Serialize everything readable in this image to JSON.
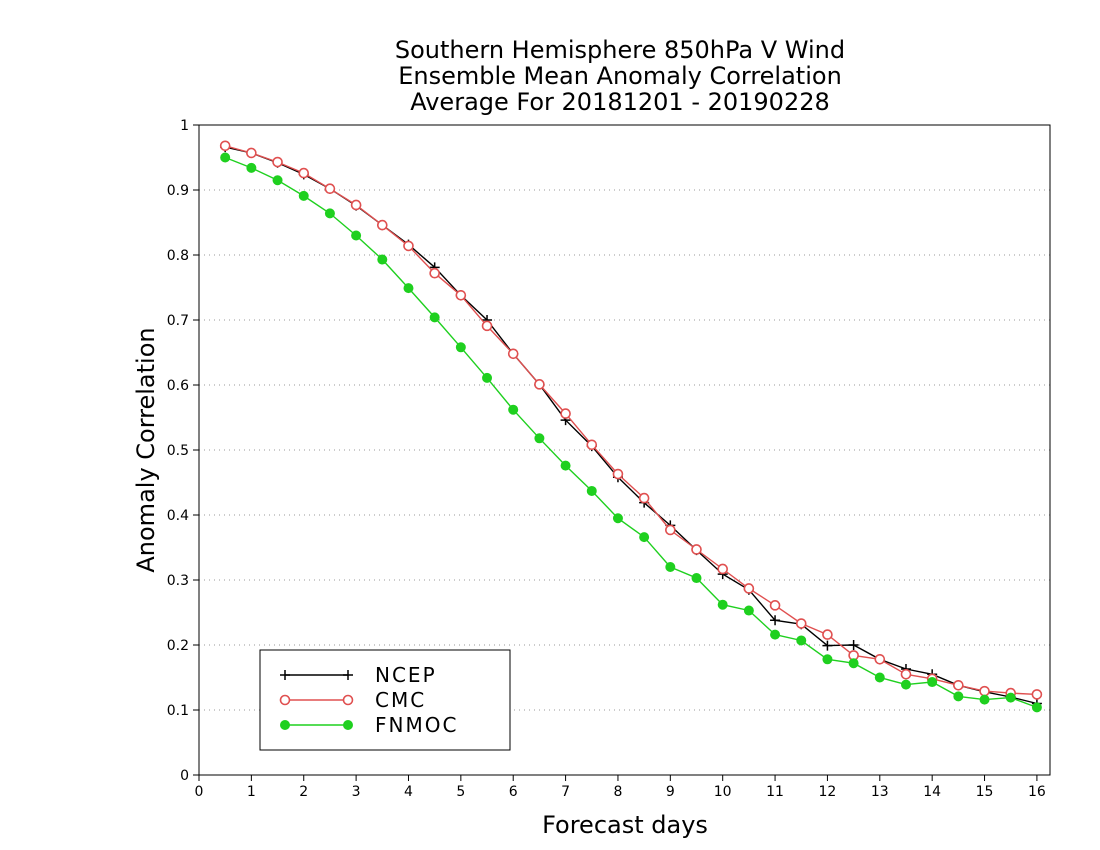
{
  "chart_data": {
    "type": "line",
    "title": [
      "Southern Hemisphere 850hPa V Wind",
      "Ensemble Mean Anomaly Correlation",
      "Average For 20181201 - 20190228"
    ],
    "xlabel": "Forecast days",
    "ylabel": "Anomaly Correlation",
    "xlim": [
      0,
      16.25
    ],
    "ylim": [
      0,
      1
    ],
    "xticks": [
      "0",
      "1",
      "2",
      "3",
      "4",
      "5",
      "6",
      "7",
      "8",
      "9",
      "10",
      "11",
      "12",
      "13",
      "14",
      "15",
      "16"
    ],
    "yticks": [
      "0",
      "0.1",
      "0.2",
      "0.3",
      "0.4",
      "0.5",
      "0.6",
      "0.7",
      "0.8",
      "0.9",
      "1"
    ],
    "grid": "horizontal dotted",
    "legend_position": "bottom-left",
    "x": [
      0.5,
      1,
      1.5,
      2,
      2.5,
      3,
      3.5,
      4,
      4.5,
      5,
      5.5,
      6,
      6.5,
      7,
      7.5,
      8,
      8.5,
      9,
      9.5,
      10,
      10.5,
      11,
      11.5,
      12,
      12.5,
      13,
      13.5,
      14,
      14.5,
      15,
      15.5,
      16
    ],
    "series": [
      {
        "name": "NCEP",
        "color": "#000000",
        "marker": "plus",
        "values": [
          0.966,
          0.957,
          0.942,
          0.924,
          0.902,
          0.876,
          0.846,
          0.816,
          0.781,
          0.738,
          0.7,
          0.648,
          0.601,
          0.546,
          0.506,
          0.458,
          0.419,
          0.384,
          0.346,
          0.309,
          0.285,
          0.238,
          0.232,
          0.199,
          0.2,
          0.178,
          0.163,
          0.155,
          0.138,
          0.128,
          0.12,
          0.11
        ]
      },
      {
        "name": "CMC",
        "color": "#e05050",
        "marker": "open-circle",
        "values": [
          0.968,
          0.957,
          0.943,
          0.926,
          0.902,
          0.877,
          0.846,
          0.814,
          0.772,
          0.738,
          0.691,
          0.648,
          0.601,
          0.556,
          0.508,
          0.463,
          0.426,
          0.377,
          0.347,
          0.317,
          0.287,
          0.261,
          0.233,
          0.216,
          0.184,
          0.178,
          0.155,
          0.148,
          0.138,
          0.129,
          0.126,
          0.124
        ]
      },
      {
        "name": "FNMOC",
        "color": "#1fd01f",
        "marker": "filled-circle",
        "values": [
          0.95,
          0.934,
          0.915,
          0.891,
          0.864,
          0.83,
          0.793,
          0.749,
          0.704,
          0.658,
          0.611,
          0.562,
          0.518,
          0.476,
          0.437,
          0.395,
          0.366,
          0.32,
          0.303,
          0.262,
          0.253,
          0.216,
          0.207,
          0.178,
          0.172,
          0.15,
          0.139,
          0.143,
          0.121,
          0.116,
          0.119,
          0.104
        ]
      }
    ]
  }
}
